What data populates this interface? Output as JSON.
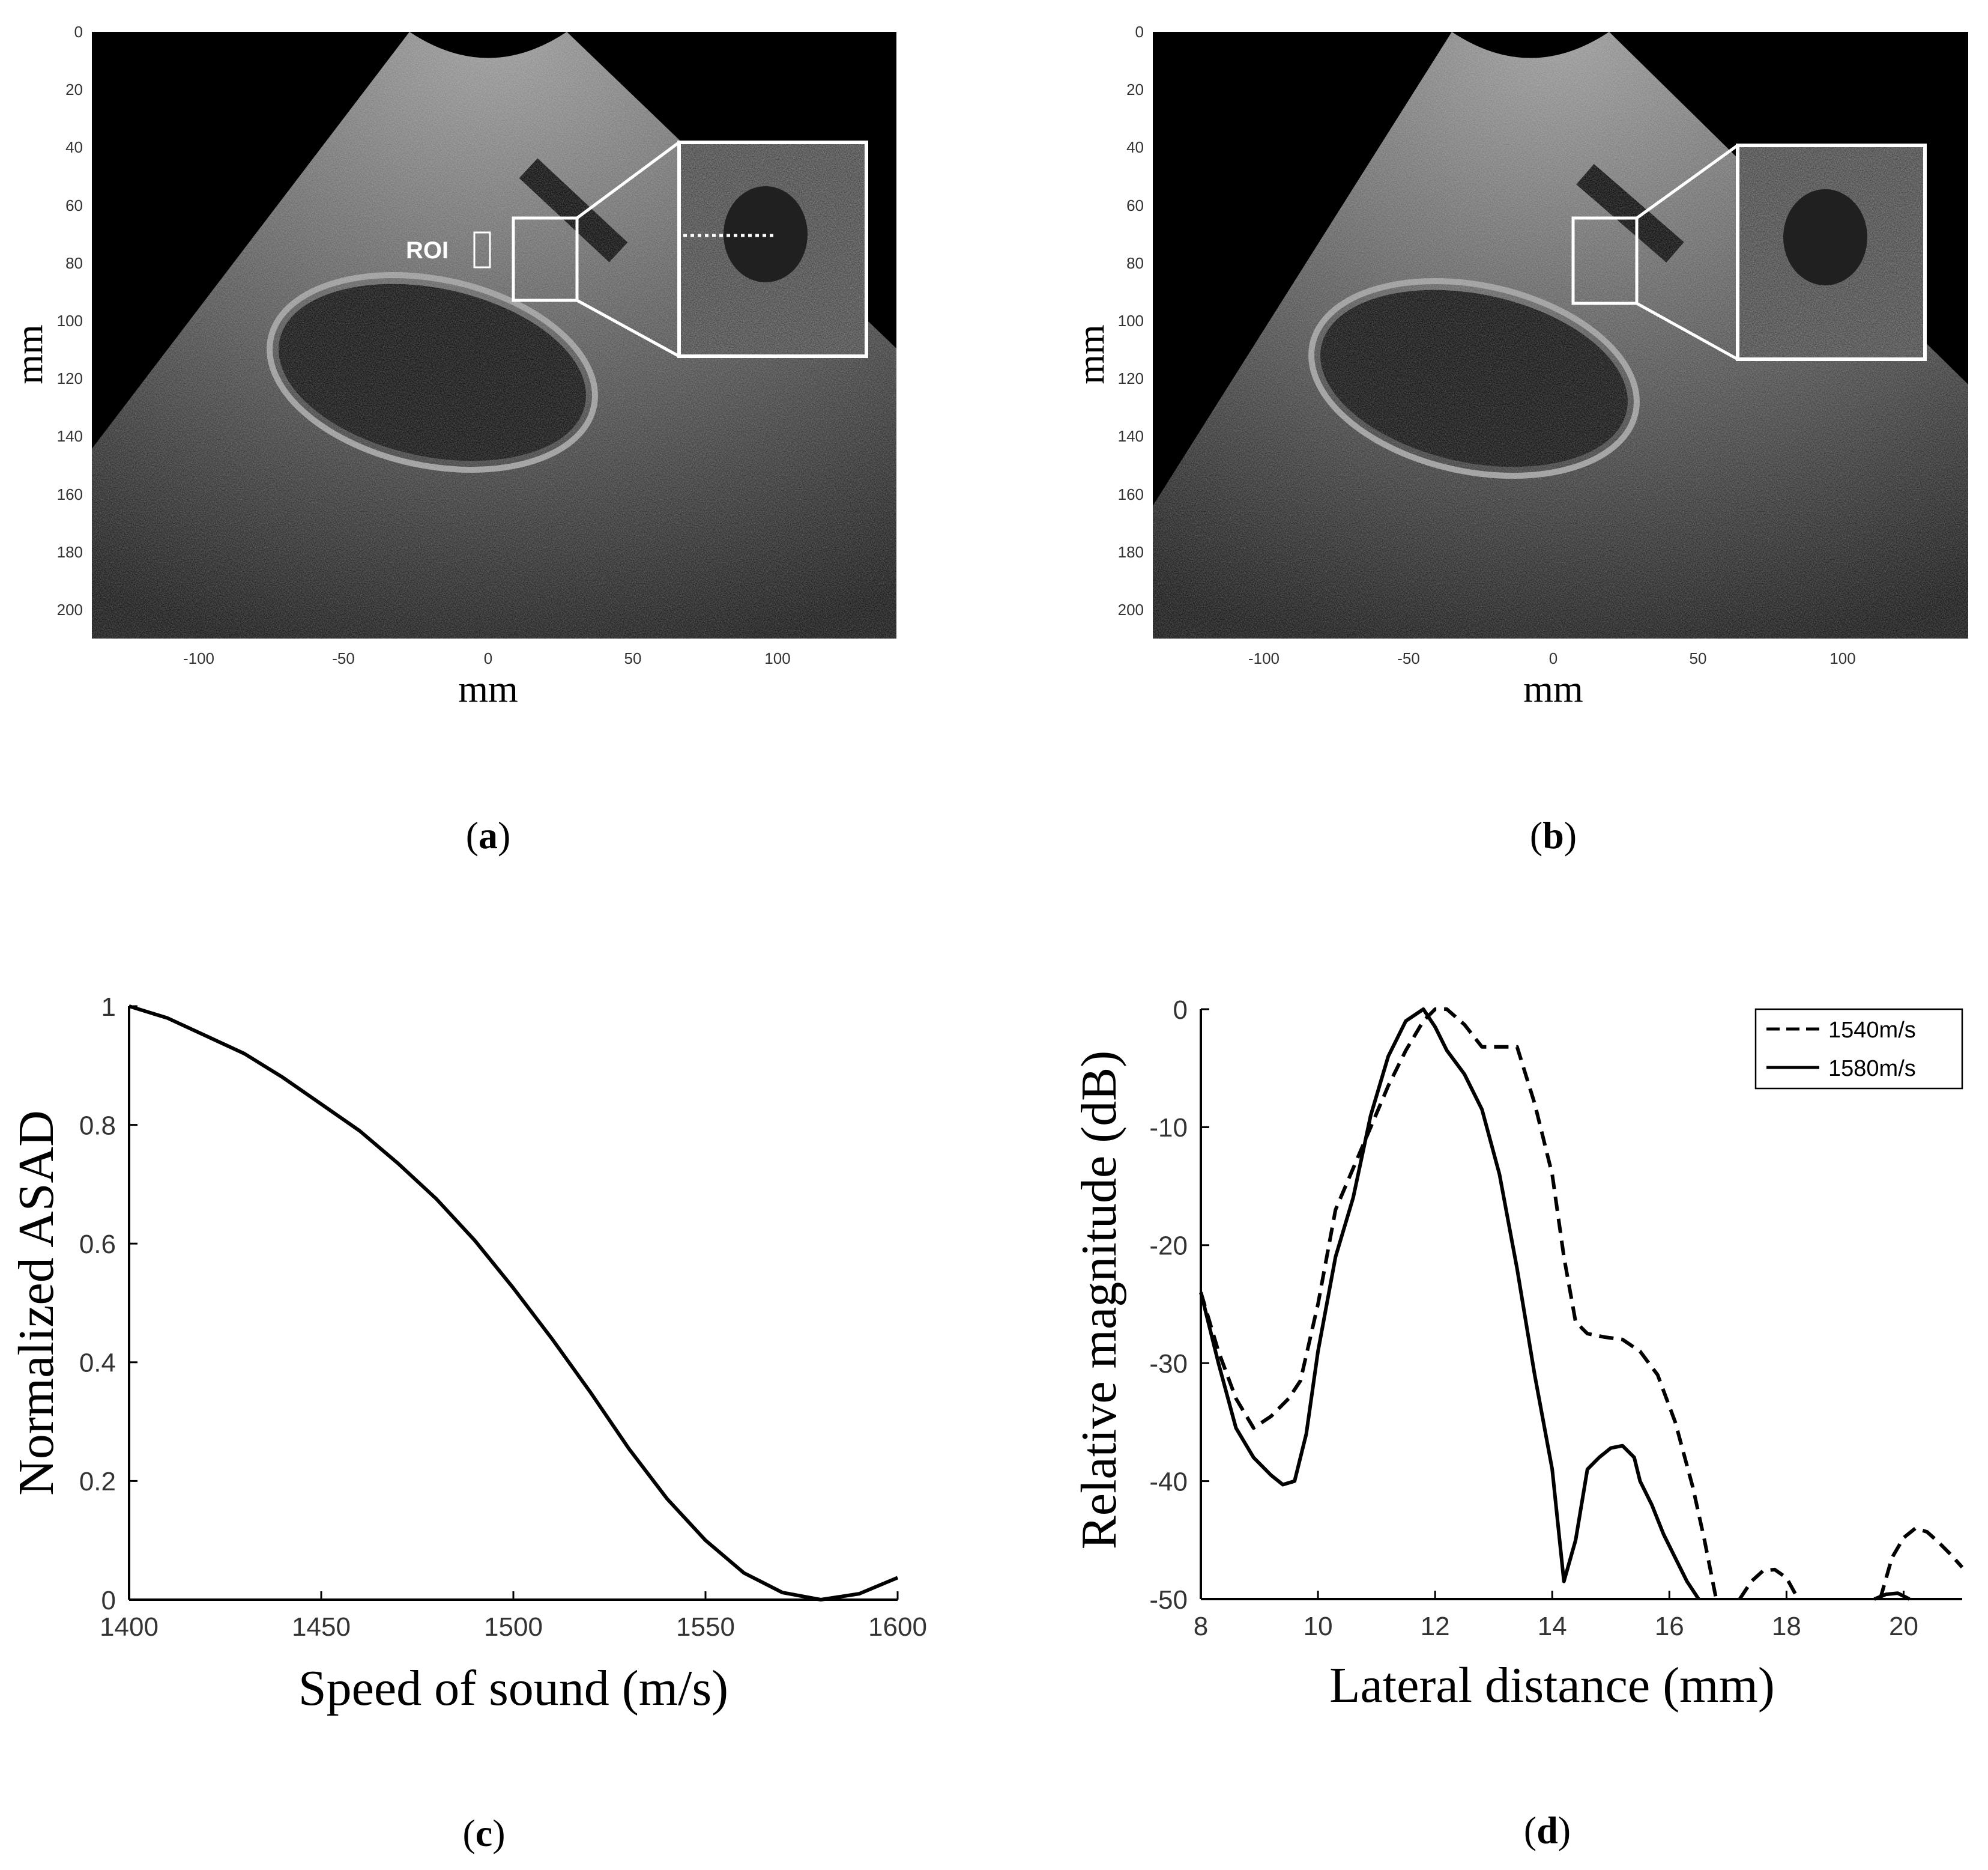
{
  "colors": {
    "background": "#ffffff",
    "ink": "#000000",
    "ultrasound_bg": "#000000",
    "overlay": "#ffffff"
  },
  "panel_a": {
    "label_open": "(",
    "label_letter": "a",
    "label_close": ")",
    "xlabel": "mm",
    "ylabel": "mm",
    "x_ticks": [
      "-100",
      "-50",
      "0",
      "50",
      "100"
    ],
    "y_ticks": [
      "0",
      "20",
      "40",
      "60",
      "80",
      "100",
      "120",
      "140",
      "160",
      "180",
      "200"
    ],
    "roi_text": "ROI",
    "image_description_icon": "ultrasound-image-icon"
  },
  "panel_b": {
    "label_open": "(",
    "label_letter": "b",
    "label_close": ")",
    "xlabel": "mm",
    "ylabel": "mm",
    "x_ticks": [
      "-100",
      "-50",
      "0",
      "50",
      "100"
    ],
    "y_ticks": [
      "0",
      "20",
      "40",
      "60",
      "80",
      "100",
      "120",
      "140",
      "160",
      "180",
      "200"
    ]
  },
  "panel_c": {
    "label_open": "(",
    "label_letter": "c",
    "label_close": ")"
  },
  "panel_d": {
    "label_open": "(",
    "label_letter": "d",
    "label_close": ")"
  },
  "chart_data": [
    {
      "id": "c",
      "type": "line",
      "xlabel": "Speed of sound (m/s)",
      "ylabel": "Normalized ASAD",
      "xlim": [
        1400,
        1600
      ],
      "ylim": [
        0,
        1
      ],
      "x_ticks": [
        1400,
        1450,
        1500,
        1550,
        1600
      ],
      "x_tick_labels": [
        "1400",
        "1450",
        "1500",
        "1550",
        "1600"
      ],
      "y_ticks": [
        0,
        0.2,
        0.4,
        0.6,
        0.8,
        1
      ],
      "y_tick_labels": [
        "0",
        "0.2",
        "0.4",
        "0.6",
        "0.8",
        "1"
      ],
      "series": [
        {
          "name": "ASAD",
          "style": "solid",
          "x": [
            1400,
            1410,
            1420,
            1430,
            1440,
            1450,
            1460,
            1470,
            1480,
            1490,
            1500,
            1510,
            1520,
            1530,
            1540,
            1550,
            1560,
            1570,
            1580,
            1590,
            1600
          ],
          "y": [
            1.0,
            0.98,
            0.95,
            0.92,
            0.88,
            0.835,
            0.79,
            0.735,
            0.675,
            0.605,
            0.525,
            0.44,
            0.35,
            0.255,
            0.17,
            0.1,
            0.045,
            0.012,
            0.0,
            0.01,
            0.037
          ]
        }
      ]
    },
    {
      "id": "d",
      "type": "line",
      "xlabel": "Lateral distance (mm)",
      "ylabel": "Relative magnitude (dB)",
      "xlim": [
        8,
        21
      ],
      "ylim": [
        -50,
        0
      ],
      "x_ticks": [
        8,
        10,
        12,
        14,
        16,
        18,
        20
      ],
      "x_tick_labels": [
        "8",
        "10",
        "12",
        "14",
        "16",
        "18",
        "20"
      ],
      "y_ticks": [
        0,
        -10,
        -20,
        -30,
        -40,
        -50
      ],
      "y_tick_labels": [
        "0",
        "-10",
        "-20",
        "-30",
        "-40",
        "-50"
      ],
      "legend_position": "top-right",
      "series": [
        {
          "name": "1540m/s",
          "style": "dashed",
          "x": [
            8.0,
            8.3,
            8.6,
            8.9,
            9.2,
            9.5,
            9.7,
            10.0,
            10.3,
            10.6,
            10.9,
            11.2,
            11.5,
            11.8,
            12.0,
            12.2,
            12.5,
            12.8,
            13.1,
            13.4,
            13.7,
            14.0,
            14.2,
            14.4,
            14.6,
            14.9,
            15.2,
            15.5,
            15.8,
            16.1,
            16.4,
            16.6,
            16.8
          ],
          "y": [
            -24,
            -29,
            -33,
            -35.5,
            -34.5,
            -33,
            -31.5,
            -25,
            -17,
            -13.5,
            -10,
            -6.5,
            -3.5,
            -1,
            0,
            0,
            -1.3,
            -3.2,
            -3.2,
            -3.2,
            -8,
            -14,
            -21,
            -26.5,
            -27.5,
            -27.8,
            -28,
            -29,
            -31,
            -35,
            -40.5,
            -45,
            -50
          ]
        },
        {
          "name": "1540m/s",
          "style": "dashed",
          "x": [
            17.2,
            17.4,
            17.6,
            17.8,
            18.0,
            18.2
          ],
          "y": [
            -50,
            -48.5,
            -47.6,
            -47.5,
            -48.2,
            -50
          ]
        },
        {
          "name": "1540m/s",
          "style": "dashed",
          "x": [
            19.6,
            19.8,
            20.0,
            20.2,
            20.4,
            20.6,
            20.8,
            21.0
          ],
          "y": [
            -50,
            -46.5,
            -44.8,
            -44,
            -44.3,
            -45.2,
            -46.2,
            -47.3
          ]
        },
        {
          "name": "1580m/s",
          "style": "solid",
          "x": [
            8.0,
            8.3,
            8.6,
            8.9,
            9.2,
            9.4,
            9.6,
            9.8,
            10.0,
            10.3,
            10.6,
            10.9,
            11.2,
            11.5,
            11.8,
            12.0,
            12.2,
            12.5,
            12.8,
            13.1,
            13.4,
            13.7,
            14.0,
            14.2,
            14.4,
            14.5,
            14.6,
            14.8,
            15.0,
            15.2,
            15.4,
            15.5,
            15.7,
            15.9,
            16.1,
            16.3,
            16.5
          ],
          "y": [
            -24,
            -30,
            -35.5,
            -38,
            -39.5,
            -40.3,
            -40,
            -36,
            -29,
            -21,
            -16,
            -9,
            -4,
            -1,
            0,
            -1.5,
            -3.5,
            -5.5,
            -8.5,
            -14,
            -22,
            -31,
            -39,
            -48.5,
            -45,
            -42,
            -39,
            -38,
            -37.2,
            -37,
            -38,
            -40,
            -42,
            -44.5,
            -46.5,
            -48.5,
            -50
          ]
        },
        {
          "name": "1580m/s",
          "style": "solid",
          "x": [
            19.5,
            19.7,
            19.9,
            20.1
          ],
          "y": [
            -50,
            -49.6,
            -49.5,
            -50
          ]
        }
      ],
      "legend": [
        {
          "label": "1540m/s",
          "style": "dashed"
        },
        {
          "label": "1580m/s",
          "style": "solid"
        }
      ]
    }
  ]
}
